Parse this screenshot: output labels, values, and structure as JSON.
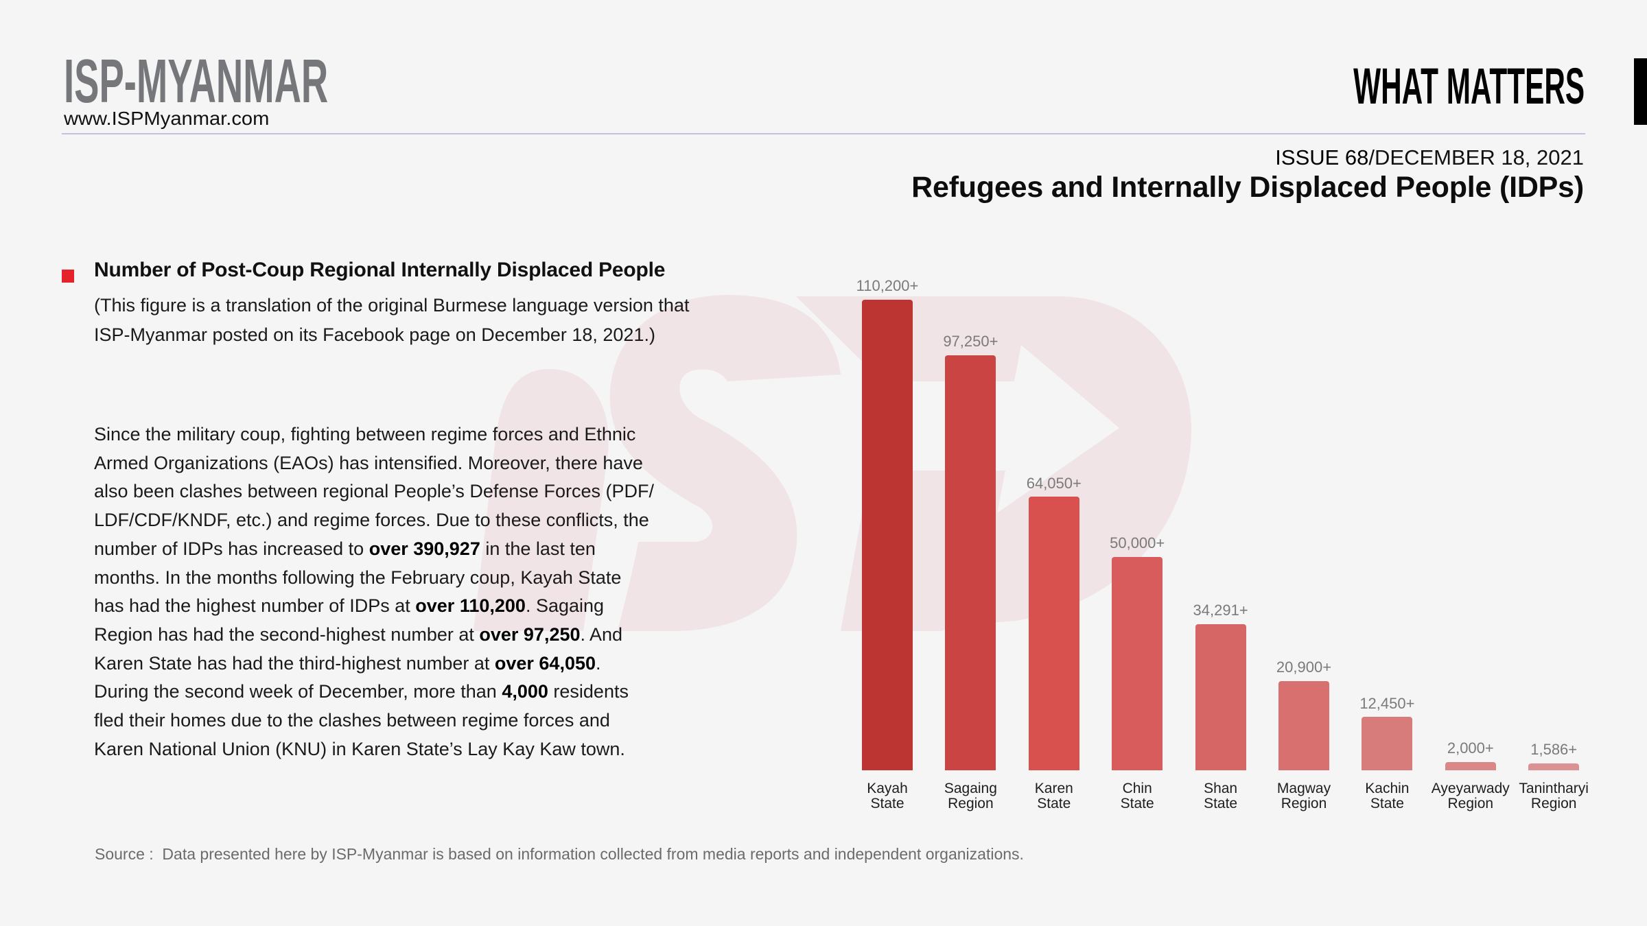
{
  "header": {
    "logo": "ISP-MYANMAR",
    "url": "www.ISPMyanmar.com",
    "brand_right": "WHAT MATTERS",
    "issue_number": "ISSUE 68",
    "issue_date": "/DECEMBER 18, 2021",
    "title": "Refugees and Internally Displaced People (IDPs)"
  },
  "section": {
    "heading": "Number of Post-Coup Regional Internally Displaced People",
    "note_lines": [
      "(This figure is a translation of the original Burmese language version that",
      "ISP-Myanmar posted on its Facebook page on December 18, 2021.)"
    ]
  },
  "body": {
    "lines": [
      [
        {
          "text": "Since the military coup, fighting between regime forces and Ethnic",
          "bold": false
        }
      ],
      [
        {
          "text": "Armed Organizations (EAOs) has intensified. Moreover, there have",
          "bold": false
        }
      ],
      [
        {
          "text": "also been clashes between regional People’s Defense Forces (PDF/",
          "bold": false
        }
      ],
      [
        {
          "text": "LDF/CDF/KNDF, etc.) and regime forces. Due to these conflicts, the",
          "bold": false
        }
      ],
      [
        {
          "text": "number of IDPs has increased to ",
          "bold": false
        },
        {
          "text": "over 390,927",
          "bold": true
        },
        {
          "text": " in the last ten",
          "bold": false
        }
      ],
      [
        {
          "text": "months. In the months following the February coup, Kayah State",
          "bold": false
        }
      ],
      [
        {
          "text": "has had the highest number of IDPs at ",
          "bold": false
        },
        {
          "text": "over 110,200",
          "bold": true
        },
        {
          "text": ". Sagaing",
          "bold": false
        }
      ],
      [
        {
          "text": "Region has had the second-highest number at ",
          "bold": false
        },
        {
          "text": "over 97,250",
          "bold": true
        },
        {
          "text": ". And",
          "bold": false
        }
      ],
      [
        {
          "text": "Karen State has had the third-highest number at ",
          "bold": false
        },
        {
          "text": "over 64,050",
          "bold": true
        },
        {
          "text": ".",
          "bold": false
        }
      ],
      [
        {
          "text": "During the second week of December, more than ",
          "bold": false
        },
        {
          "text": "4,000",
          "bold": true
        },
        {
          "text": " residents",
          "bold": false
        }
      ],
      [
        {
          "text": "fled their homes due to the clashes between regime forces and",
          "bold": false
        }
      ],
      [
        {
          "text": "Karen National Union (KNU) in Karen State’s Lay Kay Kaw town.",
          "bold": false
        }
      ]
    ]
  },
  "source": "Source :  Data presented here by ISP-Myanmar is based on information collected from media reports and independent organizations.",
  "colors": {
    "background": "#f4f5f4",
    "bullet": "#e52229",
    "logo_gray": "#76777b",
    "watermark": "#f0e4e6"
  },
  "chart_data": {
    "type": "bar",
    "title": "Number of Post-Coup Regional Internally Displaced People",
    "xlabel": "",
    "ylabel": "",
    "ylim": [
      0,
      110200
    ],
    "grid": false,
    "axes_visible": false,
    "legend": "none",
    "categories": [
      [
        "Kayah",
        "State"
      ],
      [
        "Sagaing",
        "Region"
      ],
      [
        "Karen",
        "State"
      ],
      [
        "Chin",
        "State"
      ],
      [
        "Shan",
        "State"
      ],
      [
        "Magway",
        "Region"
      ],
      [
        "Kachin",
        "State"
      ],
      [
        "Ayeyarwady",
        "Region"
      ],
      [
        "Tanintharyi",
        "Region"
      ]
    ],
    "values": [
      110200,
      97250,
      64050,
      50000,
      34291,
      20900,
      12450,
      2000,
      1586
    ],
    "value_labels": [
      "110,200+",
      "97,250+",
      "64,050+",
      "50,000+",
      "34,291+",
      "20,900+",
      "12,450+",
      "2,000+",
      "1,586+"
    ],
    "bar_colors": [
      "#bc3532",
      "#c94442",
      "#d8514f",
      "#d85c5b",
      "#d66565",
      "#d87070",
      "#d77c7b",
      "#da8787",
      "#dc9294"
    ]
  }
}
